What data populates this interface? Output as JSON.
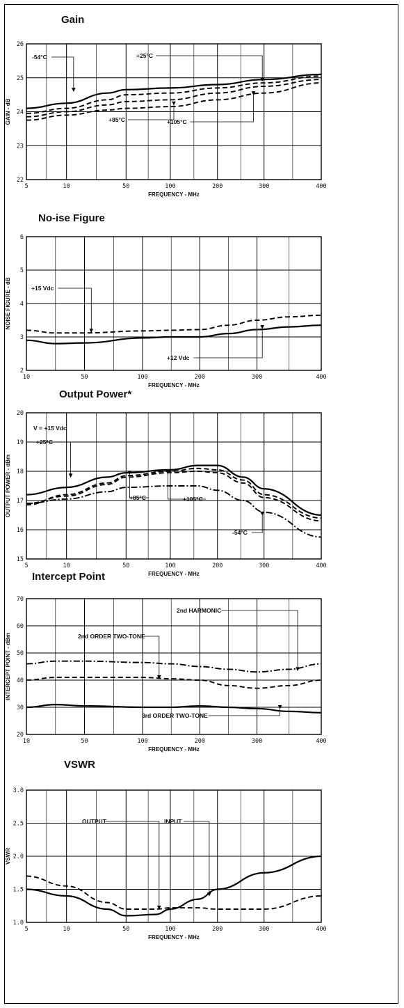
{
  "chart_data": [
    {
      "type": "line",
      "title": "Gain",
      "xlabel": "FREQUENCY - MHz",
      "ylabel": "GAIN - dB",
      "x_ticks": [
        {
          "label": "5"
        },
        {
          "label": "10"
        },
        {
          "label": "50"
        },
        {
          "label": "100"
        },
        {
          "label": "200"
        },
        {
          "label": "300"
        },
        {
          "label": "400"
        }
      ],
      "y_ticks": [
        "26",
        "25",
        "24",
        "23",
        "22"
      ],
      "ylim": [
        22,
        26
      ],
      "grid": true,
      "series": [
        {
          "name": "-54°C",
          "style": "solid",
          "x": [
            5,
            10,
            30,
            50,
            100,
            200,
            300,
            400
          ],
          "y": [
            24.1,
            24.25,
            24.55,
            24.65,
            24.7,
            24.8,
            24.95,
            25.1
          ]
        },
        {
          "name": "+25°C",
          "style": "dashed",
          "x": [
            5,
            10,
            30,
            50,
            100,
            200,
            300,
            400
          ],
          "y": [
            23.95,
            24.1,
            24.35,
            24.5,
            24.55,
            24.7,
            24.85,
            25.05
          ]
        },
        {
          "name": "+85°C",
          "style": "dashed",
          "x": [
            5,
            10,
            30,
            50,
            100,
            200,
            300,
            400
          ],
          "y": [
            23.85,
            24.0,
            24.2,
            24.3,
            24.35,
            24.55,
            24.75,
            24.95
          ]
        },
        {
          "name": "+105°C",
          "style": "dashed",
          "x": [
            5,
            10,
            30,
            50,
            100,
            200,
            300,
            400
          ],
          "y": [
            23.75,
            23.9,
            24.05,
            24.1,
            24.15,
            24.35,
            24.55,
            24.85
          ]
        }
      ],
      "annotations": [
        "-54°C",
        "+25°C",
        "+85°C",
        "+105°C"
      ]
    },
    {
      "type": "line",
      "title": "No-ise Figure",
      "xlabel": "FREQUENCY - MHz",
      "ylabel": "NOISE FIGURE - dB",
      "x_ticks": [
        {
          "label": "10"
        },
        {
          "label": "50"
        },
        {
          "label": "100"
        },
        {
          "label": "200"
        },
        {
          "label": "300"
        },
        {
          "label": "400"
        }
      ],
      "y_ticks": [
        "6",
        "5",
        "4",
        "3",
        "2"
      ],
      "ylim": [
        2,
        6
      ],
      "grid": true,
      "series": [
        {
          "name": "+15 Vdc",
          "style": "dashed",
          "x": [
            10,
            30,
            50,
            100,
            150,
            200,
            250,
            300,
            350,
            400
          ],
          "y": [
            3.2,
            3.12,
            3.12,
            3.18,
            3.2,
            3.22,
            3.35,
            3.5,
            3.6,
            3.65
          ]
        },
        {
          "name": "+12 Vdc",
          "style": "solid",
          "x": [
            10,
            30,
            50,
            100,
            150,
            200,
            250,
            300,
            350,
            400
          ],
          "y": [
            2.9,
            2.8,
            2.82,
            2.97,
            3.0,
            3.0,
            3.1,
            3.22,
            3.3,
            3.35
          ]
        }
      ],
      "annotations": [
        "+15 Vdc",
        "+12 Vdc"
      ]
    },
    {
      "type": "line",
      "title": "Output Power*",
      "xlabel": "FREQUENCY - MHz",
      "ylabel": "OUTPUT POWER - dBm",
      "x_ticks": [
        {
          "label": "5"
        },
        {
          "label": "10"
        },
        {
          "label": "50"
        },
        {
          "label": "100"
        },
        {
          "label": "200"
        },
        {
          "label": "300"
        },
        {
          "label": "400"
        }
      ],
      "y_ticks": [
        "20",
        "19",
        "18",
        "17",
        "16",
        "15"
      ],
      "ylim": [
        15,
        20
      ],
      "grid": true,
      "series": [
        {
          "name": "+25°C",
          "style": "solid",
          "x": [
            5,
            10,
            30,
            50,
            100,
            150,
            200,
            250,
            300,
            400
          ],
          "y": [
            17.2,
            17.45,
            17.8,
            17.95,
            18.05,
            18.2,
            18.2,
            17.8,
            17.4,
            16.5
          ]
        },
        {
          "name": "+85°C",
          "style": "dashed",
          "x": [
            5,
            10,
            30,
            50,
            100,
            150,
            200,
            250,
            300,
            400
          ],
          "y": [
            16.85,
            17.2,
            17.6,
            17.85,
            18.0,
            18.1,
            18.05,
            17.7,
            17.2,
            16.4
          ]
        },
        {
          "name": "+105°C",
          "style": "dashed",
          "x": [
            5,
            10,
            30,
            50,
            100,
            150,
            200,
            250,
            300,
            400
          ],
          "y": [
            16.9,
            17.15,
            17.55,
            17.8,
            17.95,
            18.0,
            17.95,
            17.6,
            17.1,
            16.3
          ]
        },
        {
          "name": "-54°C",
          "style": "dashdot",
          "x": [
            5,
            10,
            30,
            50,
            100,
            150,
            200,
            250,
            300,
            400
          ],
          "y": [
            16.9,
            17.05,
            17.3,
            17.45,
            17.5,
            17.5,
            17.35,
            17.0,
            16.6,
            15.75
          ]
        }
      ],
      "annotations": [
        "V = +15 Vdc",
        "+25°C",
        "+85°C",
        "+105°C",
        "-54°C"
      ]
    },
    {
      "type": "line",
      "title": "Intercept Point",
      "xlabel": "FREQUENCY - MHz",
      "ylabel": "INTERCEPT POINT - dBm",
      "x_ticks": [
        {
          "label": "10"
        },
        {
          "label": "50"
        },
        {
          "label": "100"
        },
        {
          "label": "200"
        },
        {
          "label": "300"
        },
        {
          "label": "400"
        }
      ],
      "y_ticks": [
        "70",
        "60",
        "50",
        "40",
        "30",
        "20"
      ],
      "ylim": [
        20,
        70
      ],
      "grid": true,
      "series": [
        {
          "name": "2nd HARMONIC",
          "style": "dashdot",
          "x": [
            10,
            30,
            50,
            100,
            150,
            200,
            250,
            300,
            350,
            400
          ],
          "y": [
            46,
            47,
            47,
            46.5,
            46,
            45,
            44,
            43,
            44,
            46
          ]
        },
        {
          "name": "2nd ORDER TWO-TONE",
          "style": "dashed",
          "x": [
            10,
            30,
            50,
            100,
            150,
            200,
            250,
            300,
            350,
            400
          ],
          "y": [
            40,
            41,
            41,
            41,
            40.5,
            40,
            38,
            37,
            38,
            40
          ]
        },
        {
          "name": "3rd ORDER TWO-TONE",
          "style": "solid",
          "x": [
            10,
            30,
            50,
            100,
            150,
            200,
            250,
            300,
            350,
            400
          ],
          "y": [
            30,
            31,
            30.5,
            30,
            30,
            30.5,
            30,
            29.5,
            28.5,
            28
          ]
        }
      ],
      "annotations": [
        "2nd HARMONIC",
        "2nd ORDER TWO-TONE",
        "3rd ORDER TWO-TONE"
      ]
    },
    {
      "type": "line",
      "title": "VSWR",
      "xlabel": "FREQUENCY - MHz",
      "ylabel": "VSWR",
      "x_ticks": [
        {
          "label": "5"
        },
        {
          "label": "10"
        },
        {
          "label": "50"
        },
        {
          "label": "100"
        },
        {
          "label": "200"
        },
        {
          "label": "300"
        },
        {
          "label": "400"
        }
      ],
      "y_ticks": [
        "3.0",
        "2.5",
        "2.0",
        "1.5",
        "1.0"
      ],
      "ylim": [
        1.0,
        3.0
      ],
      "grid": true,
      "series": [
        {
          "name": "INPUT",
          "style": "solid",
          "x": [
            5,
            10,
            30,
            50,
            80,
            100,
            150,
            200,
            300,
            400
          ],
          "y": [
            1.5,
            1.4,
            1.2,
            1.1,
            1.12,
            1.2,
            1.35,
            1.5,
            1.75,
            2.0
          ]
        },
        {
          "name": "OUTPUT",
          "style": "dashed",
          "x": [
            5,
            10,
            30,
            50,
            80,
            100,
            150,
            200,
            300,
            400
          ],
          "y": [
            1.7,
            1.55,
            1.3,
            1.2,
            1.2,
            1.22,
            1.22,
            1.2,
            1.2,
            1.4
          ]
        }
      ],
      "annotations": [
        "OUTPUT",
        "INPUT"
      ]
    }
  ]
}
